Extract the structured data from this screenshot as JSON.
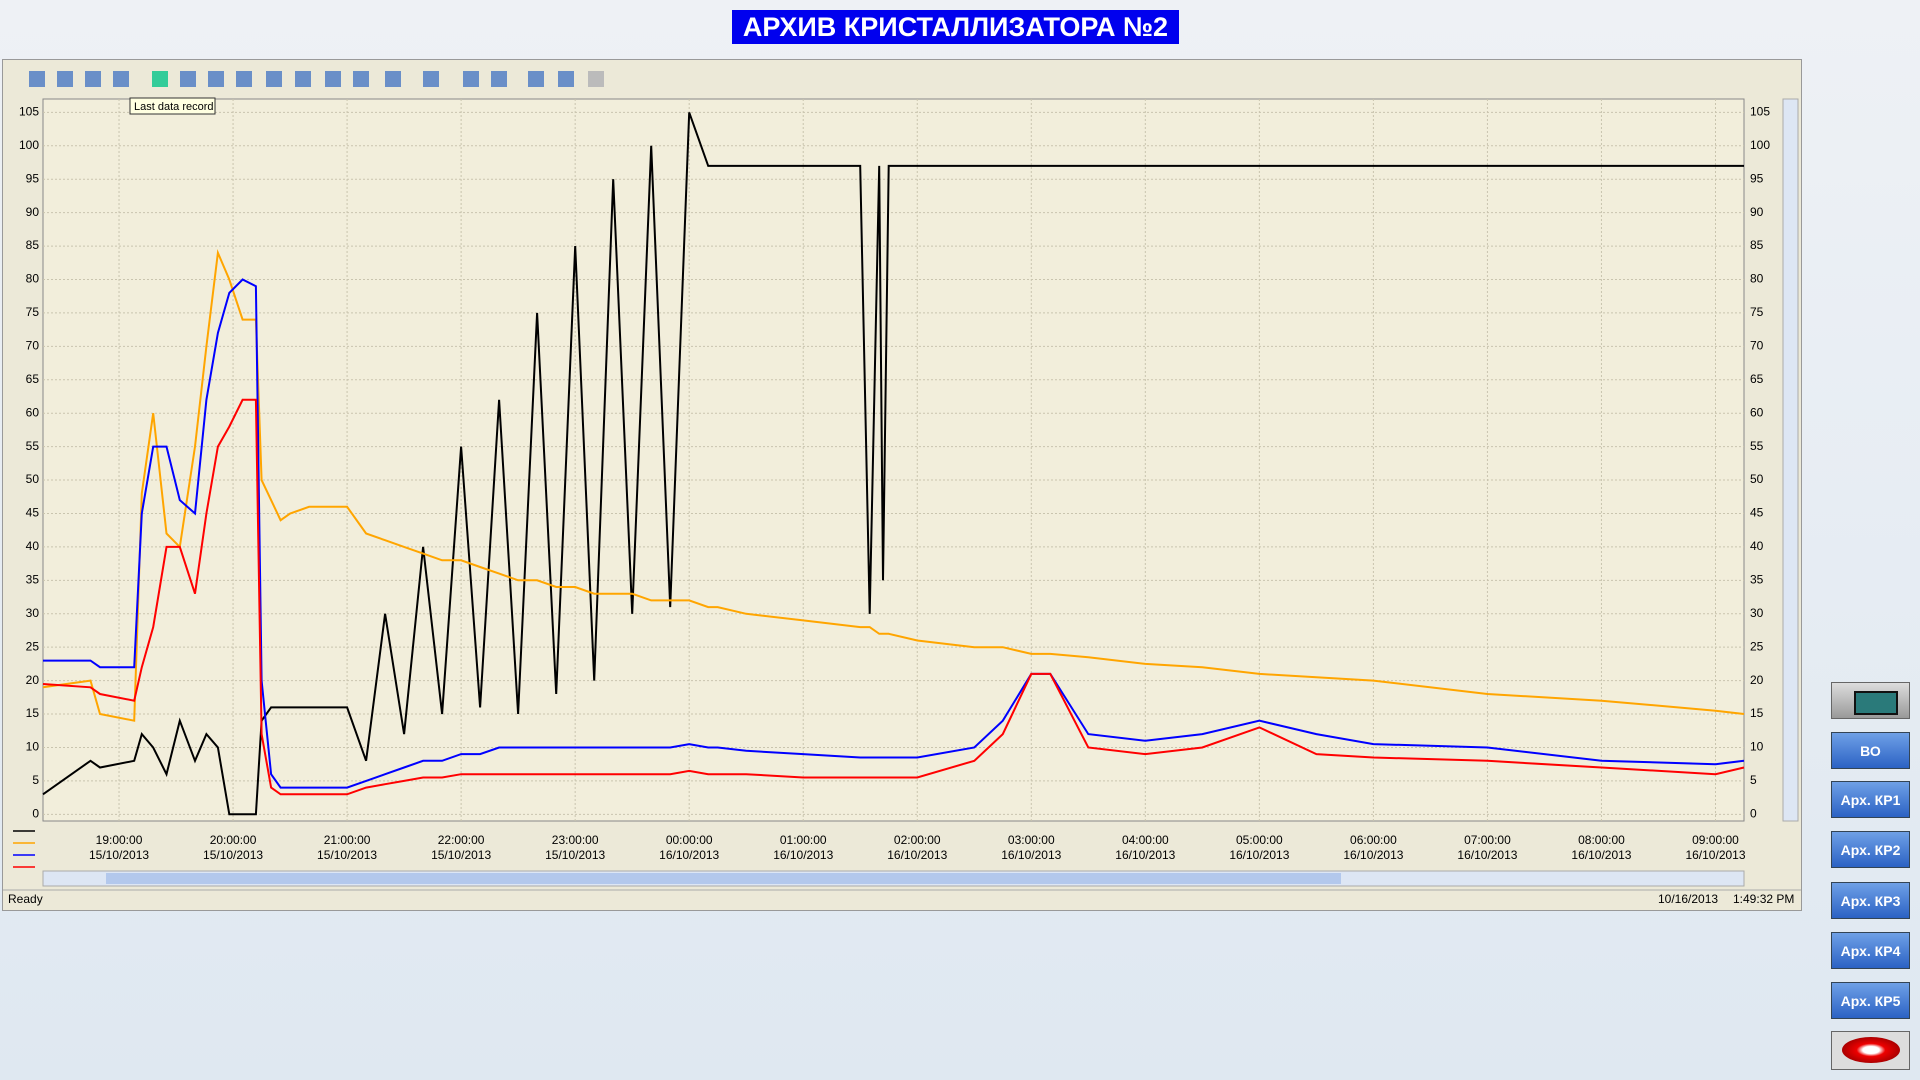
{
  "title": "АРХИВ КРИСТАЛЛИЗАТОРА №2",
  "tooltip": "Last data record",
  "status": {
    "text": "Ready",
    "date": "10/16/2013",
    "time": "1:49:32 PM"
  },
  "buttons": [
    "ВО",
    "Арх. КР1",
    "Арх. КР2",
    "Арх. КР3",
    "Арх. КР4",
    "Арх. КР5"
  ],
  "chart_data": {
    "type": "line",
    "grid": true,
    "x": [
      "15/10/2013 18:20:00",
      "15/10/2013 18:45:00",
      "15/10/2013 18:50:00",
      "15/10/2013 19:08:00",
      "15/10/2013 19:12:00",
      "15/10/2013 19:18:00",
      "15/10/2013 19:25:00",
      "15/10/2013 19:32:00",
      "15/10/2013 19:40:00",
      "15/10/2013 19:46:00",
      "15/10/2013 19:52:00",
      "15/10/2013 19:58:00",
      "15/10/2013 20:05:00",
      "15/10/2013 20:12:00",
      "15/10/2013 20:15:00",
      "15/10/2013 20:20:00",
      "15/10/2013 20:25:00",
      "15/10/2013 20:30:00",
      "15/10/2013 20:40:00",
      "15/10/2013 21:00:00",
      "15/10/2013 21:10:00",
      "15/10/2013 21:20:00",
      "15/10/2013 21:30:00",
      "15/10/2013 21:40:00",
      "15/10/2013 21:50:00",
      "15/10/2013 22:00:00",
      "15/10/2013 22:10:00",
      "15/10/2013 22:20:00",
      "15/10/2013 22:30:00",
      "15/10/2013 22:40:00",
      "15/10/2013 22:50:00",
      "15/10/2013 23:00:00",
      "15/10/2013 23:10:00",
      "15/10/2013 23:20:00",
      "15/10/2013 23:30:00",
      "15/10/2013 23:40:00",
      "15/10/2013 23:50:00",
      "16/10/2013 00:00:00",
      "16/10/2013 00:10:00",
      "16/10/2013 00:15:00",
      "16/10/2013 00:30:00",
      "16/10/2013 01:00:00",
      "16/10/2013 01:30:00",
      "16/10/2013 01:35:00",
      "16/10/2013 01:40:00",
      "16/10/2013 01:42:00",
      "16/10/2013 01:45:00",
      "16/10/2013 02:00:00",
      "16/10/2013 02:30:00",
      "16/10/2013 02:45:00",
      "16/10/2013 03:00:00",
      "16/10/2013 03:10:00",
      "16/10/2013 03:30:00",
      "16/10/2013 04:00:00",
      "16/10/2013 04:30:00",
      "16/10/2013 05:00:00",
      "16/10/2013 05:30:00",
      "16/10/2013 06:00:00",
      "16/10/2013 07:00:00",
      "16/10/2013 08:00:00",
      "16/10/2013 09:00:00",
      "16/10/2013 09:15:00"
    ],
    "series": [
      {
        "color": "#000000",
        "values": [
          3,
          8,
          7,
          8,
          12,
          10,
          6,
          14,
          8,
          12,
          10,
          0,
          0,
          0,
          14,
          16,
          16,
          16,
          16,
          16,
          8,
          30,
          12,
          40,
          15,
          55,
          16,
          62,
          15,
          75,
          18,
          85,
          20,
          95,
          30,
          100,
          31,
          105,
          97,
          97,
          97,
          97,
          97,
          30,
          97,
          35,
          97,
          97,
          97,
          97,
          97,
          97,
          97,
          97,
          97,
          97,
          97,
          97,
          97,
          97,
          97,
          97
        ]
      },
      {
        "color": "#ffa500",
        "values": [
          19,
          20,
          15,
          14,
          48,
          60,
          42,
          40,
          55,
          70,
          84,
          80,
          74,
          74,
          50,
          47,
          44,
          45,
          46,
          46,
          42,
          41,
          40,
          39,
          38,
          38,
          37,
          36,
          35,
          35,
          34,
          34,
          33,
          33,
          33,
          32,
          32,
          32,
          31,
          31,
          30,
          29,
          28,
          28,
          27,
          27,
          27,
          26,
          25,
          25,
          24,
          24,
          23.5,
          22.5,
          22,
          21,
          20.5,
          20,
          18,
          17,
          15.5,
          15
        ]
      },
      {
        "color": "#0000ff",
        "values": [
          23,
          23,
          22,
          22,
          45,
          55,
          55,
          47,
          45,
          62,
          72,
          78,
          80,
          79,
          20,
          6,
          4,
          4,
          4,
          4,
          5,
          6,
          7,
          8,
          8,
          9,
          9,
          10,
          10,
          10,
          10,
          10,
          10,
          10,
          10,
          10,
          10,
          10.5,
          10,
          10,
          9.5,
          9,
          8.5,
          8.5,
          8.5,
          8.5,
          8.5,
          8.5,
          10,
          14,
          21,
          21,
          12,
          11,
          12,
          14,
          12,
          10.5,
          10,
          8,
          7.5,
          8
        ]
      },
      {
        "color": "#ff0000",
        "values": [
          19.5,
          19,
          18,
          17,
          22,
          28,
          40,
          40,
          33,
          45,
          55,
          58,
          62,
          62,
          12,
          4,
          3,
          3,
          3,
          3,
          4,
          4.5,
          5,
          5.5,
          5.5,
          6,
          6,
          6,
          6,
          6,
          6,
          6,
          6,
          6,
          6,
          6,
          6,
          6.5,
          6,
          6,
          6,
          5.5,
          5.5,
          5.5,
          5.5,
          5.5,
          5.5,
          5.5,
          8,
          12,
          21,
          21,
          10,
          9,
          10,
          13,
          9,
          8.5,
          8,
          7,
          6,
          7
        ]
      }
    ],
    "xlim": [
      "15/10/2013 18:20:00",
      "16/10/2013 09:15:00"
    ],
    "xticks": [
      {
        "value": "15/10/2013 19:00:00",
        "label": [
          "19:00:00",
          "15/10/2013"
        ]
      },
      {
        "value": "15/10/2013 20:00:00",
        "label": [
          "20:00:00",
          "15/10/2013"
        ]
      },
      {
        "value": "15/10/2013 21:00:00",
        "label": [
          "21:00:00",
          "15/10/2013"
        ]
      },
      {
        "value": "15/10/2013 22:00:00",
        "label": [
          "22:00:00",
          "15/10/2013"
        ]
      },
      {
        "value": "15/10/2013 23:00:00",
        "label": [
          "23:00:00",
          "15/10/2013"
        ]
      },
      {
        "value": "16/10/2013 00:00:00",
        "label": [
          "00:00:00",
          "16/10/2013"
        ]
      },
      {
        "value": "16/10/2013 01:00:00",
        "label": [
          "01:00:00",
          "16/10/2013"
        ]
      },
      {
        "value": "16/10/2013 02:00:00",
        "label": [
          "02:00:00",
          "16/10/2013"
        ]
      },
      {
        "value": "16/10/2013 03:00:00",
        "label": [
          "03:00:00",
          "16/10/2013"
        ]
      },
      {
        "value": "16/10/2013 04:00:00",
        "label": [
          "04:00:00",
          "16/10/2013"
        ]
      },
      {
        "value": "16/10/2013 05:00:00",
        "label": [
          "05:00:00",
          "16/10/2013"
        ]
      },
      {
        "value": "16/10/2013 06:00:00",
        "label": [
          "06:00:00",
          "16/10/2013"
        ]
      },
      {
        "value": "16/10/2013 07:00:00",
        "label": [
          "07:00:00",
          "16/10/2013"
        ]
      },
      {
        "value": "16/10/2013 08:00:00",
        "label": [
          "08:00:00",
          "16/10/2013"
        ]
      },
      {
        "value": "16/10/2013 09:00:00",
        "label": [
          "09:00:00",
          "16/10/2013"
        ]
      }
    ],
    "ylim": [
      -1,
      107
    ],
    "yticks": [
      0,
      5,
      10,
      15,
      20,
      25,
      30,
      35,
      40,
      45,
      50,
      55,
      60,
      65,
      70,
      75,
      80,
      85,
      90,
      95,
      100,
      105
    ]
  }
}
